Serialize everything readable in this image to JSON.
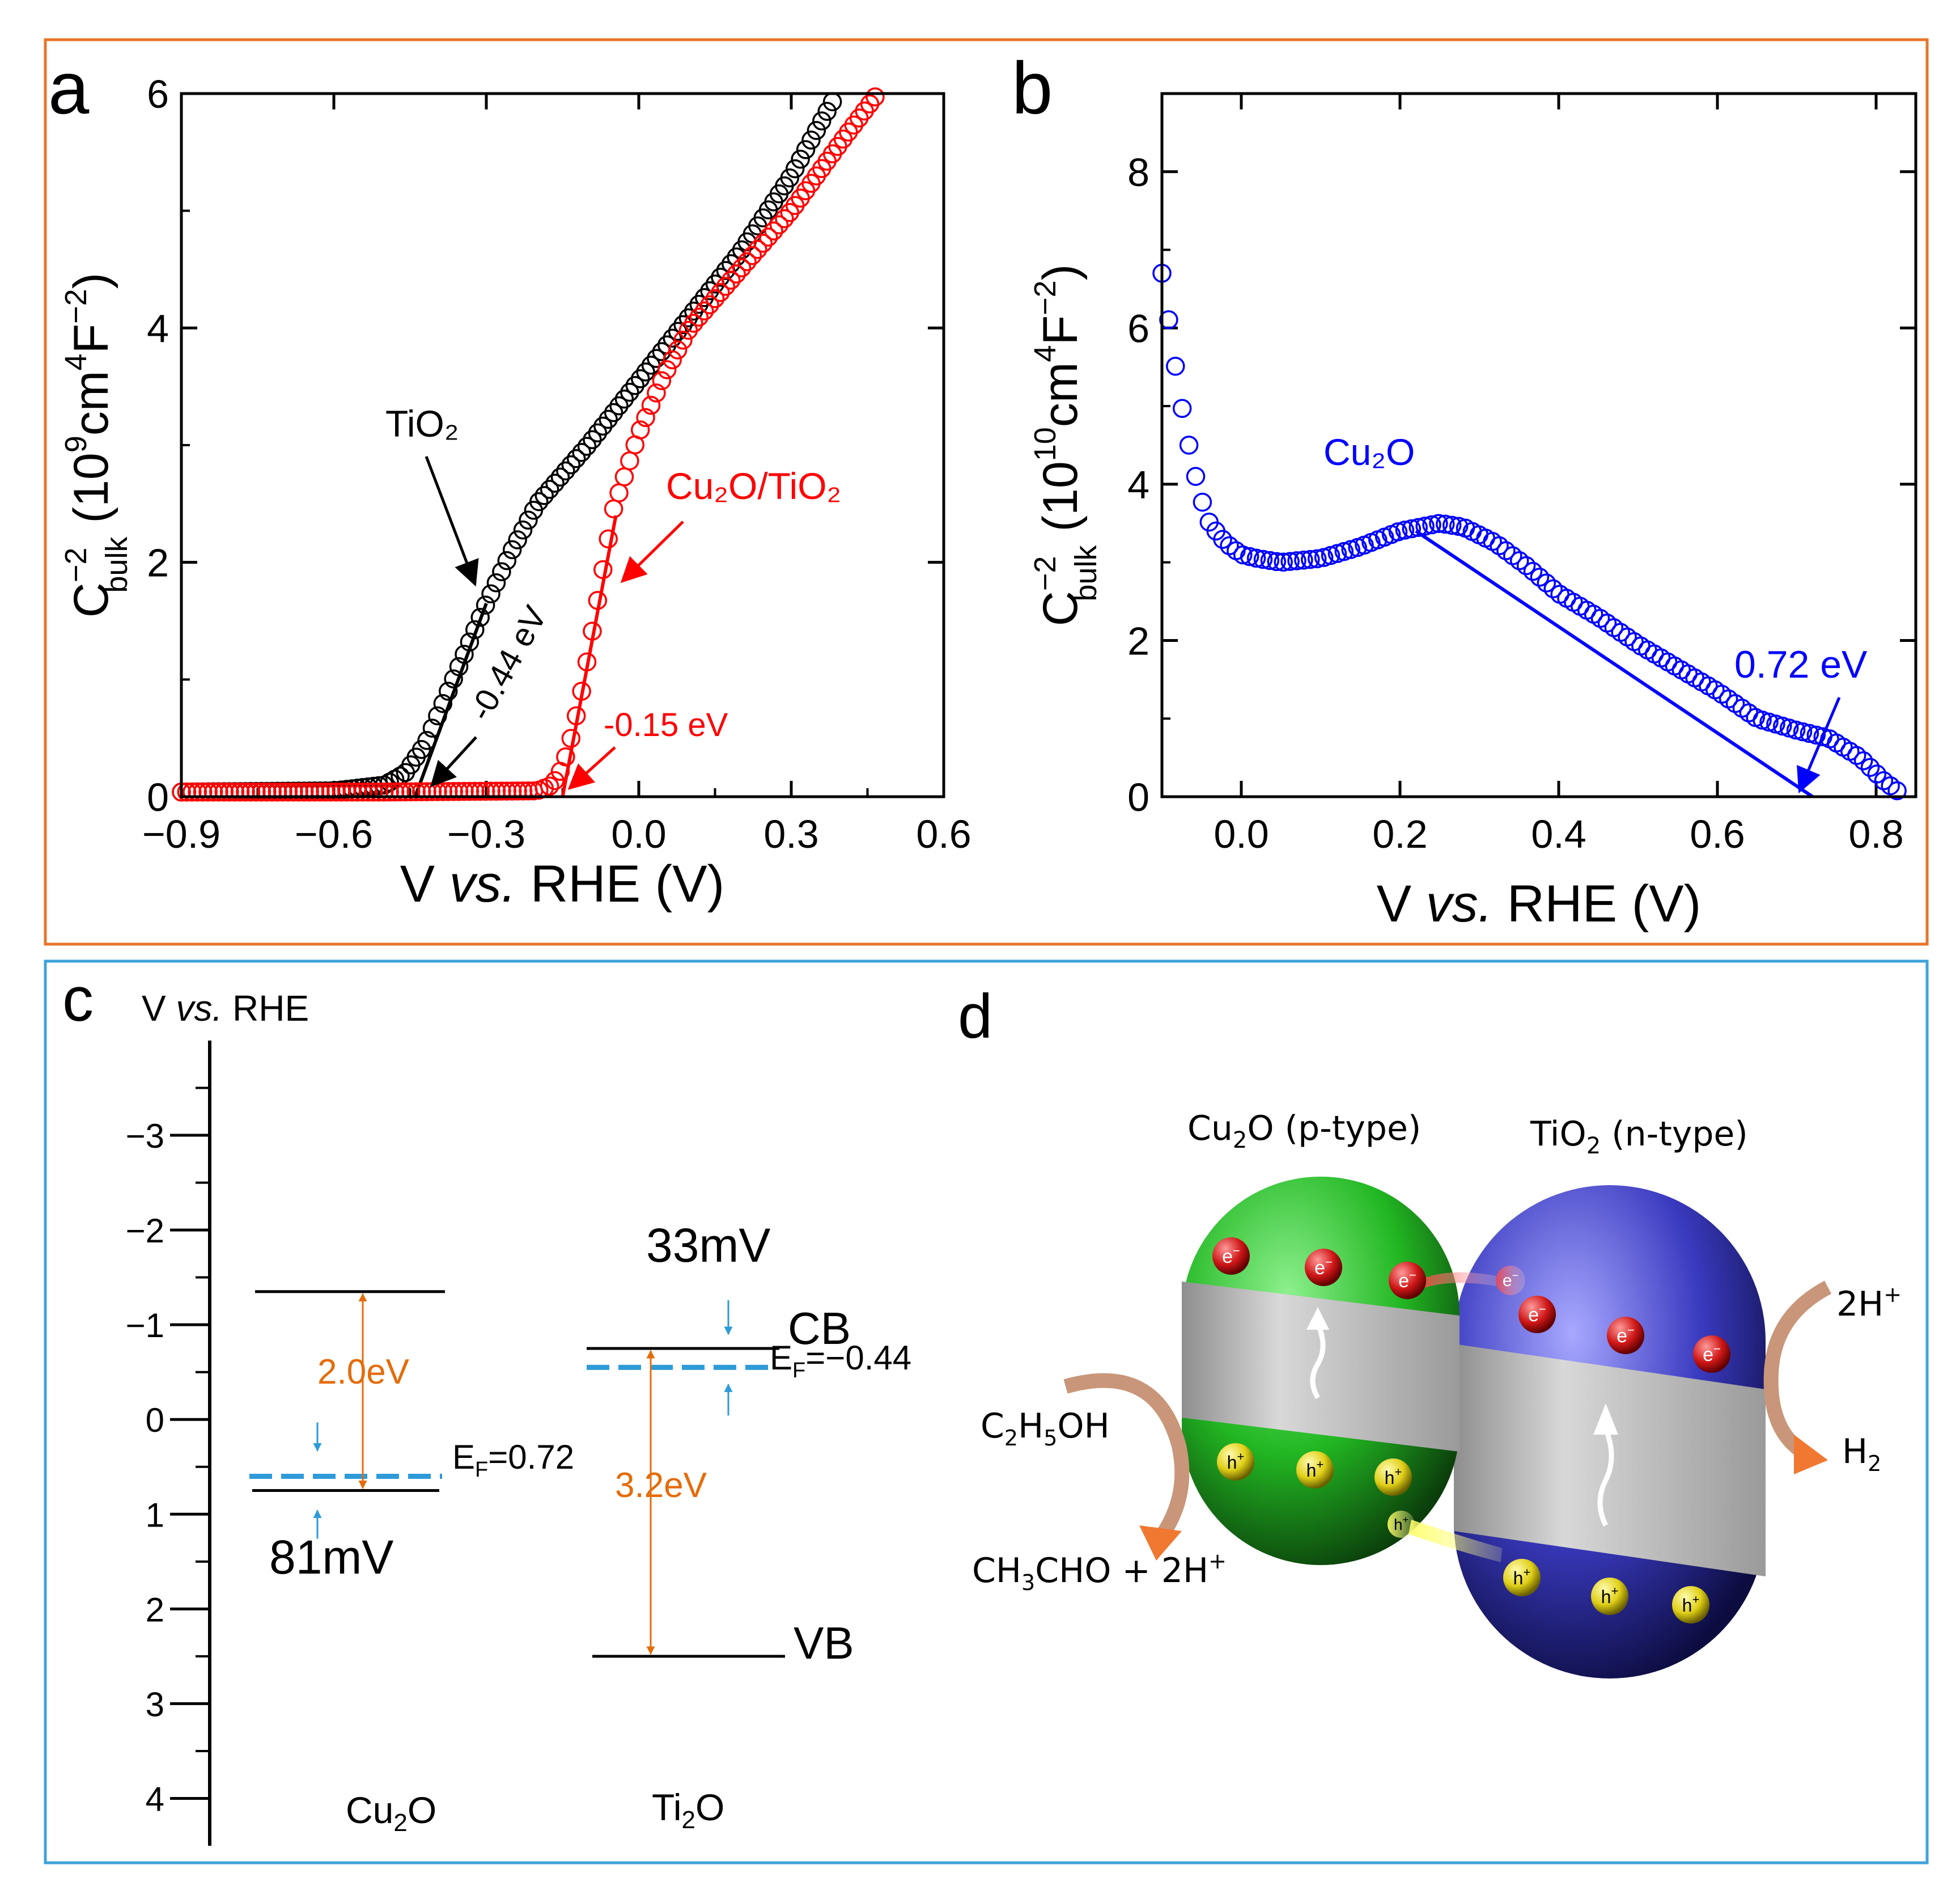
{
  "chart_data": [
    {
      "panel": "a",
      "type": "scatter",
      "xlabel": {
        "main": "V ",
        "italic": "vs.",
        "tail": " RHE (V)"
      },
      "ylabel": {
        "c": "C",
        "exp": "−2",
        "sub": "bulk",
        "open": " (10",
        "exp9": "9",
        "unit": "cm",
        "exp4": "4",
        "f": "F",
        "expm2": "−2",
        "close": ")"
      },
      "xlim": [
        -0.9,
        0.6
      ],
      "ylim": [
        0,
        6
      ],
      "xticks": [
        "−0.9",
        "−0.6",
        "−0.3",
        "0.0",
        "0.3",
        "0.6"
      ],
      "yticks": [
        "0",
        "2",
        "4",
        "6"
      ],
      "xtick_values": [
        -0.9,
        -0.6,
        -0.3,
        0.0,
        0.3,
        0.6
      ],
      "ytick_values": [
        0,
        2,
        4,
        6
      ],
      "series": [
        {
          "name": "TiO2",
          "color": "#000000",
          "x": [
            -0.9,
            -0.6,
            -0.5,
            -0.46,
            -0.42,
            -0.38,
            -0.34,
            -0.3,
            -0.25,
            -0.2,
            -0.1,
            0.0,
            0.1,
            0.2,
            0.3,
            0.39
          ],
          "y": [
            0.04,
            0.05,
            0.1,
            0.2,
            0.45,
            0.85,
            1.25,
            1.65,
            2.1,
            2.5,
            3.0,
            3.55,
            4.1,
            4.65,
            5.3,
            6.0
          ]
        },
        {
          "name": "Cu2O/TiO2",
          "color": "#ff0000",
          "x": [
            -0.9,
            -0.5,
            -0.2,
            -0.17,
            -0.15,
            -0.13,
            -0.11,
            -0.09,
            -0.07,
            -0.05,
            0.0,
            0.05,
            0.1,
            0.2,
            0.3,
            0.4,
            0.47
          ],
          "y": [
            0.04,
            0.04,
            0.05,
            0.1,
            0.25,
            0.55,
            0.95,
            1.45,
            1.95,
            2.45,
            3.1,
            3.6,
            4.0,
            4.5,
            5.0,
            5.6,
            6.0
          ]
        }
      ],
      "fits": [
        {
          "color": "#000000",
          "x": [
            -0.44,
            -0.3
          ],
          "y": [
            0,
            1.65
          ]
        },
        {
          "color": "#ff0000",
          "x": [
            -0.15,
            -0.045
          ],
          "y": [
            0,
            2.4
          ]
        }
      ],
      "annotations": [
        {
          "label": "TiO₂",
          "color": "#000000"
        },
        {
          "label": "Cu₂O/TiO₂",
          "color": "#ff0000"
        },
        {
          "label": "-0.44 eV",
          "color": "#000000"
        },
        {
          "label": "-0.15 eV",
          "color": "#ff0000"
        }
      ]
    },
    {
      "panel": "b",
      "type": "scatter",
      "xlabel": {
        "main": "V ",
        "italic": "vs.",
        "tail": " RHE (V)"
      },
      "ylabel": {
        "c": "C",
        "exp": "−2",
        "sub": "bulk",
        "open": " (10",
        "exp9": "10",
        "unit": "cm",
        "exp4": "4",
        "f": "F",
        "expm2": "−2",
        "close": ")"
      },
      "xlim": [
        -0.1,
        0.85
      ],
      "ylim": [
        0,
        9
      ],
      "xticks": [
        "0.0",
        "0.2",
        "0.4",
        "0.6",
        "0.8"
      ],
      "yticks": [
        "0",
        "2",
        "4",
        "6",
        "8"
      ],
      "xtick_values": [
        0.0,
        0.2,
        0.4,
        0.6,
        0.8
      ],
      "ytick_values": [
        0,
        2,
        4,
        6,
        8
      ],
      "series": [
        {
          "name": "Cu2O",
          "color": "#0000ff",
          "x": [
            -0.1,
            -0.09,
            -0.08,
            -0.07,
            -0.06,
            -0.05,
            -0.04,
            -0.02,
            0.0,
            0.02,
            0.05,
            0.1,
            0.15,
            0.2,
            0.25,
            0.28,
            0.32,
            0.36,
            0.4,
            0.45,
            0.5,
            0.55,
            0.6,
            0.65,
            0.7,
            0.74,
            0.78,
            0.81,
            0.83
          ],
          "y": [
            6.7,
            6.0,
            5.3,
            4.7,
            4.2,
            3.8,
            3.5,
            3.25,
            3.1,
            3.05,
            3.0,
            3.05,
            3.2,
            3.4,
            3.5,
            3.45,
            3.25,
            2.95,
            2.6,
            2.3,
            1.95,
            1.65,
            1.35,
            1.0,
            0.85,
            0.75,
            0.5,
            0.2,
            0.05
          ]
        }
      ],
      "fits": [
        {
          "color": "#0000ff",
          "x": [
            0.22,
            0.72
          ],
          "y": [
            3.4,
            0
          ]
        }
      ],
      "annotations": [
        {
          "label": "Cu₂O",
          "color": "#0000ff"
        },
        {
          "label": "0.72 eV",
          "color": "#0000ff"
        }
      ]
    },
    {
      "panel": "c",
      "type": "diagram",
      "axis_title": {
        "main": "V ",
        "italic": "vs.",
        "tail": " RHE"
      },
      "ylim": [
        -4,
        4.5
      ],
      "yticks": [
        "−3",
        "−2",
        "−1",
        "0",
        "1",
        "2",
        "3",
        "4"
      ],
      "ytick_values": [
        -3,
        -2,
        -1,
        0,
        1,
        2,
        3,
        4
      ],
      "levels": {
        "cu2o_cb": -1.35,
        "cu2o_vb": 0.75,
        "cu2o_ef": 0.6,
        "tio2_cb": -0.75,
        "tio2_vb": 2.5,
        "tio2_ef": -0.55
      },
      "labels": {
        "cu2o_gap": "2.0eV",
        "tio2_gap": "3.2eV",
        "ef_cu2o_prefix": "E",
        "ef_sub": "F",
        "ef_cu2o_value": "=0.72",
        "ef_tio2_value": "=−0.44",
        "cb": "CB",
        "vb": "VB",
        "mv_cu2o": "81mV",
        "mv_tio2": "33mV",
        "mat1_main": "Cu",
        "mat1_sub": "2",
        "mat1_tail": "O",
        "mat2_main": "Ti",
        "mat2_sub": "2",
        "mat2_tail": "O"
      },
      "colors": {
        "gap": "#e46c0a",
        "fermi": "#2e9bd8",
        "line": "#000000"
      }
    }
  ],
  "panel_labels": {
    "a": "a",
    "b": "b",
    "c": "c",
    "d": "d"
  },
  "schematic_d": {
    "cu2o_title": {
      "main": "Cu",
      "sub": "2",
      "tail": "O (p-type)"
    },
    "tio2_title": {
      "main": "TiO",
      "sub": "2",
      "tail": " (n-type)"
    },
    "electron": "e",
    "electron_sup": "−",
    "hole": "h",
    "hole_sup": "+",
    "two_h_plus": {
      "main": "2H",
      "sup": "+"
    },
    "h2": {
      "main": "H",
      "sub": "2"
    },
    "ethanol": {
      "a": "C",
      "s1": "2",
      "b": "H",
      "s2": "5",
      "c": "OH"
    },
    "acetaldehyde": {
      "a": "CH",
      "s1": "3",
      "b": "CHO + 2H",
      "sup": "+"
    },
    "colors": {
      "cu2o": "#22b722",
      "tio2": "#3a3ac0",
      "band": "#bdbdbd",
      "electron": "#d01818",
      "hole": "#e8e020",
      "arrow": "#f07830",
      "reaction_arc": "#c9967a"
    }
  },
  "frame_colors": {
    "top": "#e8742a",
    "bottom": "#3ea3d9"
  }
}
